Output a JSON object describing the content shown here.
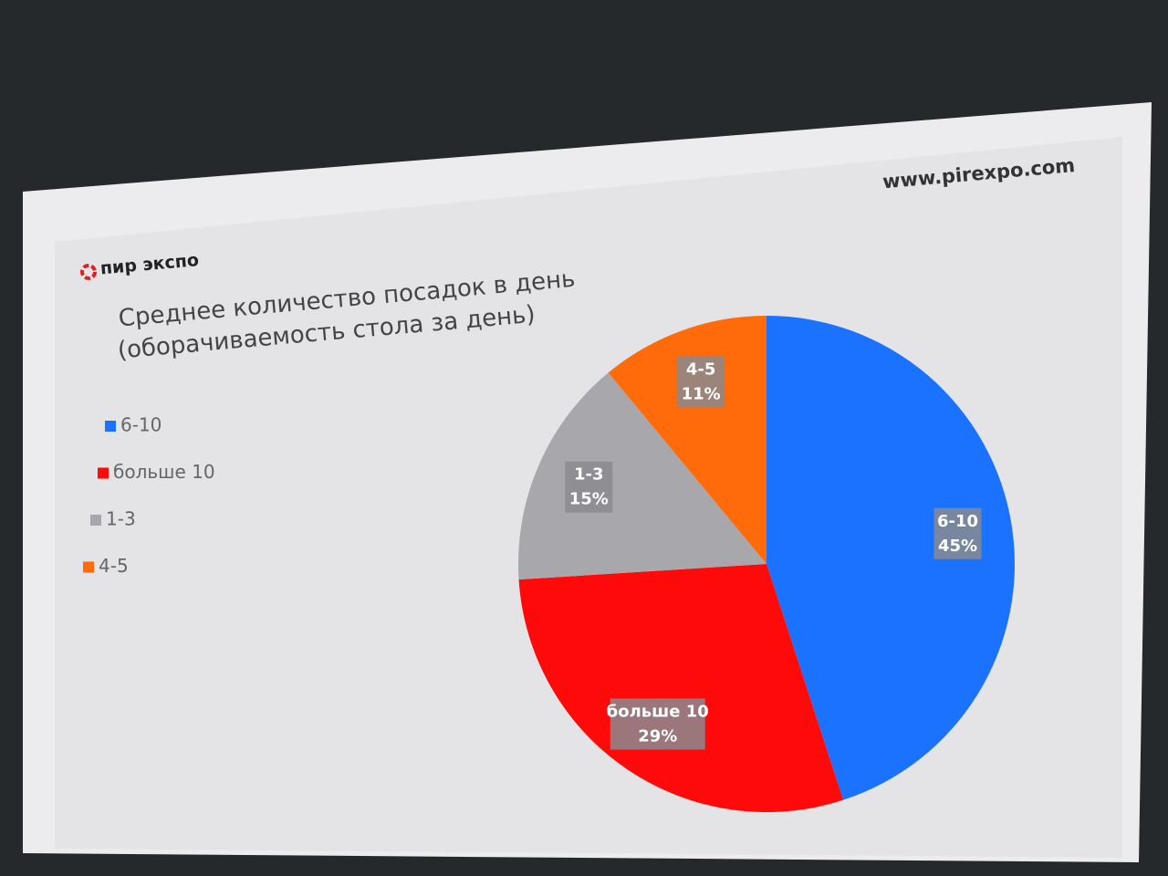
{
  "site": "www.pirexpo.com",
  "logo": "пир экспо",
  "chart_data": {
    "type": "pie",
    "title": [
      "Среднее количество посадок в день",
      "(оборачиваемость стола за день)"
    ],
    "categories": [
      "6-10",
      "больше 10",
      "1-3",
      "4-5"
    ],
    "values": [
      45,
      29,
      15,
      11
    ],
    "value_labels": [
      "45%",
      "29%",
      "15%",
      "11%"
    ],
    "colors": [
      "#1a72ff",
      "#ff0a0a",
      "#a8a8ac",
      "#ff6a0a"
    ],
    "legend": "left"
  }
}
